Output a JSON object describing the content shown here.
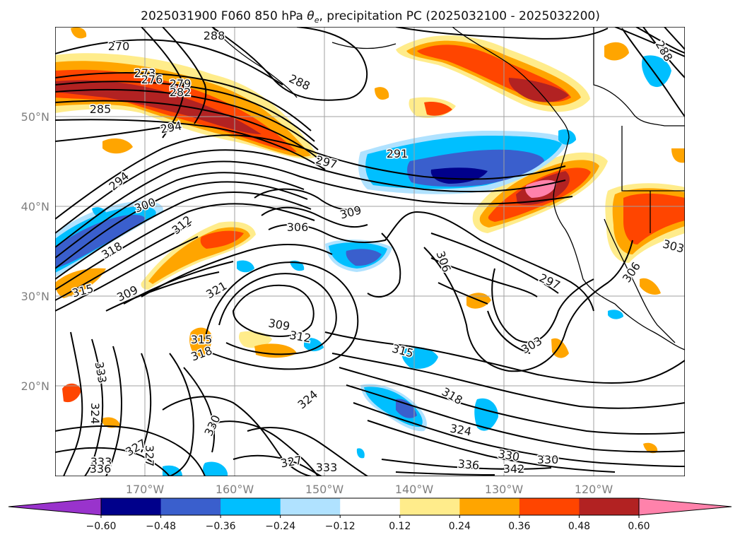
{
  "title": {
    "prefix": "2025031900 F060 850 hPa ",
    "theta": "θ",
    "sub": "e",
    "suffix": ", precipitation PC (2025032100 - 2025032200)"
  },
  "lat_labels": [
    "50°N",
    "40°N",
    "30°N",
    "20°N"
  ],
  "lon_labels": [
    "170°W",
    "160°W",
    "150°W",
    "140°W",
    "130°W",
    "120°W"
  ],
  "contour_labels": [
    "270",
    "273",
    "276",
    "279",
    "282",
    "285",
    "288",
    "288",
    "288",
    "291",
    "294",
    "294",
    "297",
    "297",
    "300",
    "303",
    "303",
    "306",
    "306",
    "306",
    "309",
    "309",
    "309",
    "312",
    "312",
    "315",
    "315",
    "315",
    "318",
    "318",
    "318",
    "321",
    "324",
    "324",
    "324",
    "327",
    "327",
    "327",
    "330",
    "330",
    "330",
    "333",
    "333",
    "333",
    "336",
    "336",
    "342"
  ],
  "colorbar": {
    "tick_labels": [
      "−0.60",
      "−0.48",
      "−0.36",
      "−0.24",
      "−0.12",
      "0.12",
      "0.24",
      "0.36",
      "0.48",
      "0.60"
    ],
    "colors": [
      "#9933cc",
      "#00008b",
      "#3a5fcd",
      "#00bfff",
      "#b0e2ff",
      "#ffffff",
      "#ffec8b",
      "#ffa500",
      "#ff4500",
      "#b22222",
      "#ff82ab"
    ]
  },
  "map": {
    "fill_colors": {
      "light_yellow": "#ffec8b",
      "orange": "#ffa500",
      "red_orange": "#ff4500",
      "dark_red": "#b22222",
      "pink": "#ff82ab",
      "light_blue": "#b0e2ff",
      "blue": "#00bfff",
      "royal_blue": "#3a5fcd",
      "navy": "#00008b"
    },
    "contour_color": "#000000",
    "grid": true
  }
}
